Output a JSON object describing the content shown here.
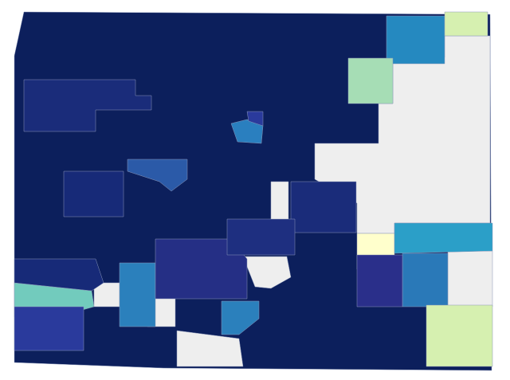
{
  "map": {
    "regions": [
      {
        "color": "#0c1f5c"
      },
      {
        "color": "#eeeeee"
      },
      {
        "color": "#eeeeee"
      },
      {
        "color": "#1a2c7a"
      },
      {
        "color": "#2b5aa8"
      },
      {
        "color": "#2a7fbf"
      },
      {
        "color": "#2a3a9c"
      },
      {
        "color": "#2589c0"
      },
      {
        "color": "#d6f0b0"
      },
      {
        "color": "#a6ddb5"
      },
      {
        "color": "#ffffcc"
      },
      {
        "color": "#2b9fc8"
      },
      {
        "color": "#2a79b8"
      },
      {
        "color": "#2a2f8a"
      },
      {
        "color": "#d6f0b0"
      },
      {
        "color": "#72cbbd"
      },
      {
        "color": "#eeeeee"
      },
      {
        "color": "#eeeeee"
      },
      {
        "color": "#eeeeee"
      },
      {
        "color": "#eeeeee"
      },
      {
        "color": "#eeeeee"
      },
      {
        "color": "#2b80bc"
      },
      {
        "color": "#2b80bc"
      },
      {
        "color": "#252f85"
      },
      {
        "color": "#172a78"
      },
      {
        "color": "#1a2c7a"
      },
      {
        "color": "#1e2f80"
      },
      {
        "color": "#172a78"
      },
      {
        "color": "#2a3a9c"
      }
    ]
  }
}
